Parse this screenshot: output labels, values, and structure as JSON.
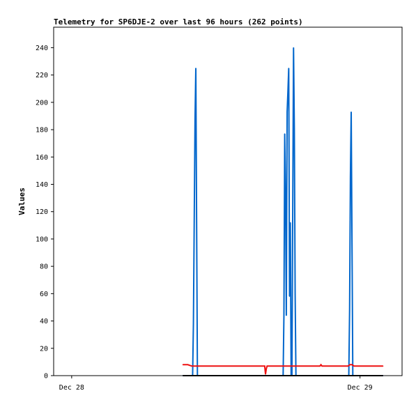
{
  "chart_data": {
    "type": "line",
    "title": "Telemetry for SP6DJE-2 over last 96 hours (262 points)",
    "xlabel": "",
    "ylabel": "Values",
    "x_range": [
      "2022-12-27T22:30",
      "2022-12-29T03:30"
    ],
    "ylim": [
      0,
      255
    ],
    "yticks": [
      0,
      20,
      40,
      60,
      80,
      100,
      120,
      140,
      160,
      180,
      200,
      220,
      240
    ],
    "xticks": [
      {
        "label": "Dec 28",
        "at": "2022-12-28T00:00"
      },
      {
        "label": "Dec 29",
        "at": "2022-12-29T00:00"
      }
    ],
    "grid": false,
    "legend": "none",
    "series": [
      {
        "color": "#0066cc",
        "x": [
          "2022-12-28T09:15",
          "2022-12-28T10:04",
          "2022-12-28T10:08",
          "2022-12-28T10:12",
          "2022-12-28T10:16",
          "2022-12-28T10:20",
          "2022-12-28T10:24",
          "2022-12-28T10:28",
          "2022-12-28T17:36",
          "2022-12-28T17:40",
          "2022-12-28T17:44",
          "2022-12-28T17:48",
          "2022-12-28T17:52",
          "2022-12-28T17:56",
          "2022-12-28T18:00",
          "2022-12-28T18:04",
          "2022-12-28T18:08",
          "2022-12-28T18:12",
          "2022-12-28T18:16",
          "2022-12-28T18:20",
          "2022-12-28T18:24",
          "2022-12-28T18:28",
          "2022-12-28T18:32",
          "2022-12-28T18:36",
          "2022-12-28T18:40",
          "2022-12-28T18:44",
          "2022-12-28T18:48",
          "2022-12-28T18:52",
          "2022-12-28T23:04",
          "2022-12-28T23:08",
          "2022-12-28T23:12",
          "2022-12-28T23:16",
          "2022-12-28T23:20",
          "2022-12-28T23:24",
          "2022-12-28T23:28",
          "2022-12-29T01:55"
        ],
        "y": [
          0,
          0,
          38,
          112,
          187,
          225,
          112,
          0,
          0,
          44,
          177,
          132,
          44,
          193,
          208,
          225,
          58,
          112,
          0,
          0,
          120,
          240,
          181,
          60,
          0,
          0,
          0,
          0,
          0,
          48,
          145,
          193,
          97,
          0,
          0,
          0
        ]
      },
      {
        "color": "#ee1111",
        "x": [
          "2022-12-28T09:15",
          "2022-12-28T09:40",
          "2022-12-28T10:00",
          "2022-12-28T16:00",
          "2022-12-28T16:04",
          "2022-12-28T16:08",
          "2022-12-28T16:12",
          "2022-12-28T16:16",
          "2022-12-28T20:40",
          "2022-12-28T20:45",
          "2022-12-28T20:50",
          "2022-12-28T23:00",
          "2022-12-28T23:10",
          "2022-12-28T23:20",
          "2022-12-28T23:30",
          "2022-12-29T01:55"
        ],
        "y": [
          8,
          8,
          7,
          7,
          7,
          1,
          5,
          7,
          7,
          8,
          7,
          7,
          8,
          8,
          7,
          7
        ]
      },
      {
        "color": "#000000",
        "x": [
          "2022-12-28T09:15",
          "2022-12-29T01:55"
        ],
        "y": [
          0,
          0
        ]
      }
    ]
  }
}
